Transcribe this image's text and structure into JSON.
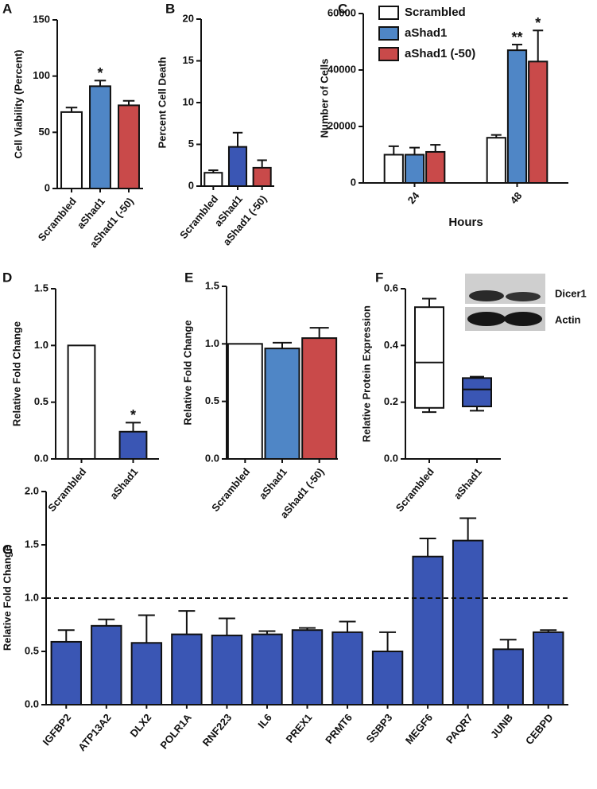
{
  "chart_data": [
    {
      "type": "bar",
      "panel": "A",
      "ylabel": "Cell Viability (Percent)",
      "categories": [
        "Scrambled",
        "aShad1",
        "aShad1 (-50)"
      ],
      "values": [
        68,
        91,
        74
      ],
      "errors": [
        4,
        5,
        4
      ],
      "colors": [
        "#ffffff",
        "#4f86c6",
        "#c94a4a"
      ],
      "significance": [
        null,
        "*",
        null
      ],
      "ylim": [
        0,
        150
      ],
      "yticks": [
        0,
        50,
        100,
        150
      ]
    },
    {
      "type": "bar",
      "panel": "B",
      "ylabel": "Percent Cell Death",
      "categories": [
        "Scrambled",
        "aShad1",
        "aShad1 (-50)"
      ],
      "values": [
        1.6,
        4.7,
        2.2
      ],
      "errors": [
        0.3,
        1.7,
        0.9
      ],
      "colors": [
        "#ffffff",
        "#3a56b4",
        "#c94a4a"
      ],
      "ylim": [
        0,
        20
      ],
      "yticks": [
        0,
        5,
        10,
        15,
        20
      ]
    },
    {
      "type": "grouped_bar",
      "panel": "C",
      "ylabel": "Number of Cells",
      "xlabel": "Hours",
      "categories": [
        "24",
        "48"
      ],
      "legend": "upper-left",
      "series": [
        {
          "name": "Scrambled",
          "color": "#ffffff",
          "values": [
            10000,
            16000
          ],
          "errors": [
            3000,
            1000
          ],
          "significance": [
            null,
            null
          ]
        },
        {
          "name": "aShad1",
          "color": "#4f86c6",
          "values": [
            10000,
            47000
          ],
          "errors": [
            2500,
            2000
          ],
          "significance": [
            null,
            "**"
          ]
        },
        {
          "name": "aShad1 (-50)",
          "color": "#c94a4a",
          "values": [
            11000,
            43000
          ],
          "errors": [
            2500,
            11000
          ],
          "significance": [
            null,
            "*"
          ]
        }
      ],
      "ylim": [
        0,
        60000
      ],
      "yticks": [
        0,
        20000,
        40000,
        60000
      ]
    },
    {
      "type": "bar",
      "panel": "D",
      "ylabel": "Relative Fold Change",
      "categories": [
        "Scrambled",
        "aShad1"
      ],
      "values": [
        1.0,
        0.24
      ],
      "errors": [
        0,
        0.08
      ],
      "colors": [
        "#ffffff",
        "#3a56b4"
      ],
      "significance": [
        null,
        "*"
      ],
      "ylim": [
        0,
        1.5
      ],
      "yticks": [
        {
          "value": 0,
          "label": "0.0"
        },
        {
          "value": 0.5,
          "label": "0.5"
        },
        {
          "value": 1,
          "label": "1.0"
        },
        {
          "value": 1.5,
          "label": "1.5"
        }
      ]
    },
    {
      "type": "bar",
      "panel": "E",
      "ylabel": "Relative Fold Change",
      "categories": [
        "Scrambled",
        "aShad1",
        "aShad1 (-50)"
      ],
      "values": [
        1.0,
        0.96,
        1.05
      ],
      "errors": [
        0,
        0.05,
        0.09
      ],
      "colors": [
        "#ffffff",
        "#4f86c6",
        "#c94a4a"
      ],
      "ylim": [
        0,
        1.5
      ],
      "yticks": [
        {
          "value": 0,
          "label": "0.0"
        },
        {
          "value": 0.5,
          "label": "0.5"
        },
        {
          "value": 1,
          "label": "1.0"
        },
        {
          "value": 1.5,
          "label": "1.5"
        }
      ]
    },
    {
      "type": "box",
      "panel": "F",
      "ylabel": "Relative Protein Expression",
      "categories": [
        "Scrambled",
        "aShad1"
      ],
      "colors": [
        "#ffffff",
        "#3a56b4"
      ],
      "boxes": [
        {
          "min": 0.165,
          "q1": 0.18,
          "median": 0.34,
          "q3": 0.535,
          "max": 0.565
        },
        {
          "min": 0.17,
          "q1": 0.185,
          "median": 0.245,
          "q3": 0.285,
          "max": 0.29
        }
      ],
      "inset_labels": [
        "Dicer1",
        "Actin"
      ],
      "ylim": [
        0,
        0.6
      ],
      "yticks": [
        {
          "value": 0,
          "label": "0.0"
        },
        {
          "value": 0.2,
          "label": "0.2"
        },
        {
          "value": 0.4,
          "label": "0.4"
        },
        {
          "value": 0.6,
          "label": "0.6"
        }
      ]
    },
    {
      "type": "bar",
      "panel": "G",
      "ylabel": "Relative Fold Change",
      "categories": [
        "IGFBP2",
        "ATP13A2",
        "DLX2",
        "POLR1A",
        "RNF223",
        "IL6",
        "PREX1",
        "PRMT6",
        "SSBP3",
        "MEGF6",
        "PAQR7",
        "JUNB",
        "CEBPD"
      ],
      "values": [
        0.59,
        0.74,
        0.58,
        0.66,
        0.65,
        0.66,
        0.7,
        0.68,
        0.5,
        1.39,
        1.54,
        0.52,
        0.68
      ],
      "errors": [
        0.11,
        0.06,
        0.26,
        0.22,
        0.16,
        0.03,
        0.02,
        0.1,
        0.18,
        0.17,
        0.21,
        0.09,
        0.02
      ],
      "color": "#3a56b4",
      "reference_line": 1.0,
      "ylim": [
        0,
        2.0
      ],
      "yticks": [
        {
          "value": 0,
          "label": "0.0"
        },
        {
          "value": 0.5,
          "label": "0.5"
        },
        {
          "value": 1,
          "label": "1.0"
        },
        {
          "value": 1.5,
          "label": "1.5"
        },
        {
          "value": 2,
          "label": "2.0"
        }
      ]
    }
  ]
}
